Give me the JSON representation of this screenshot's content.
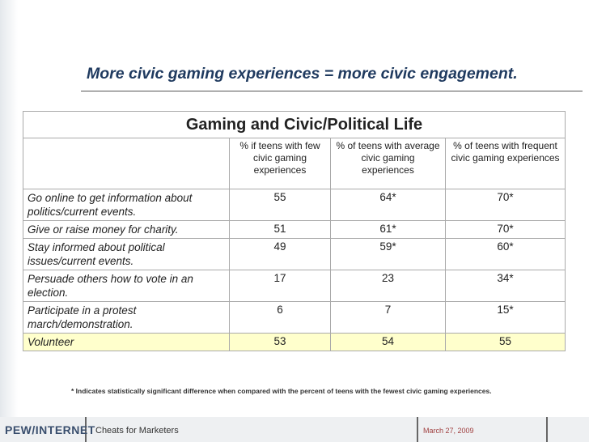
{
  "slide": {
    "headline": "More civic gaming experiences = more civic engagement.",
    "table": {
      "title": "Gaming and Civic/Political Life",
      "columns": [
        "% if teens with few civic gaming experiences",
        "% of teens with average civic gaming experiences",
        "% of teens with frequent civic gaming experiences"
      ],
      "rows": [
        [
          "Go online to get information about politics/current events.",
          "55",
          "64*",
          "70*"
        ],
        [
          "Give or raise money for charity.",
          "51",
          "61*",
          "70*"
        ],
        [
          "Stay informed about political issues/current events.",
          "49",
          "59*",
          "60*"
        ],
        [
          "Persuade others how to vote in an election.",
          "17",
          "23",
          "34*"
        ],
        [
          "Participate in a protest march/demonstration.",
          "6",
          "7",
          "15*"
        ],
        [
          "Volunteer",
          "53",
          "54",
          "55"
        ]
      ]
    },
    "footnote": "* Indicates statistically significant difference when compared with the percent of teens with the fewest civic gaming experiences.",
    "footer": {
      "logo": "PEW/INTERNET",
      "presentation": "Cheats for Marketers",
      "date": "March 27, 2009"
    }
  }
}
